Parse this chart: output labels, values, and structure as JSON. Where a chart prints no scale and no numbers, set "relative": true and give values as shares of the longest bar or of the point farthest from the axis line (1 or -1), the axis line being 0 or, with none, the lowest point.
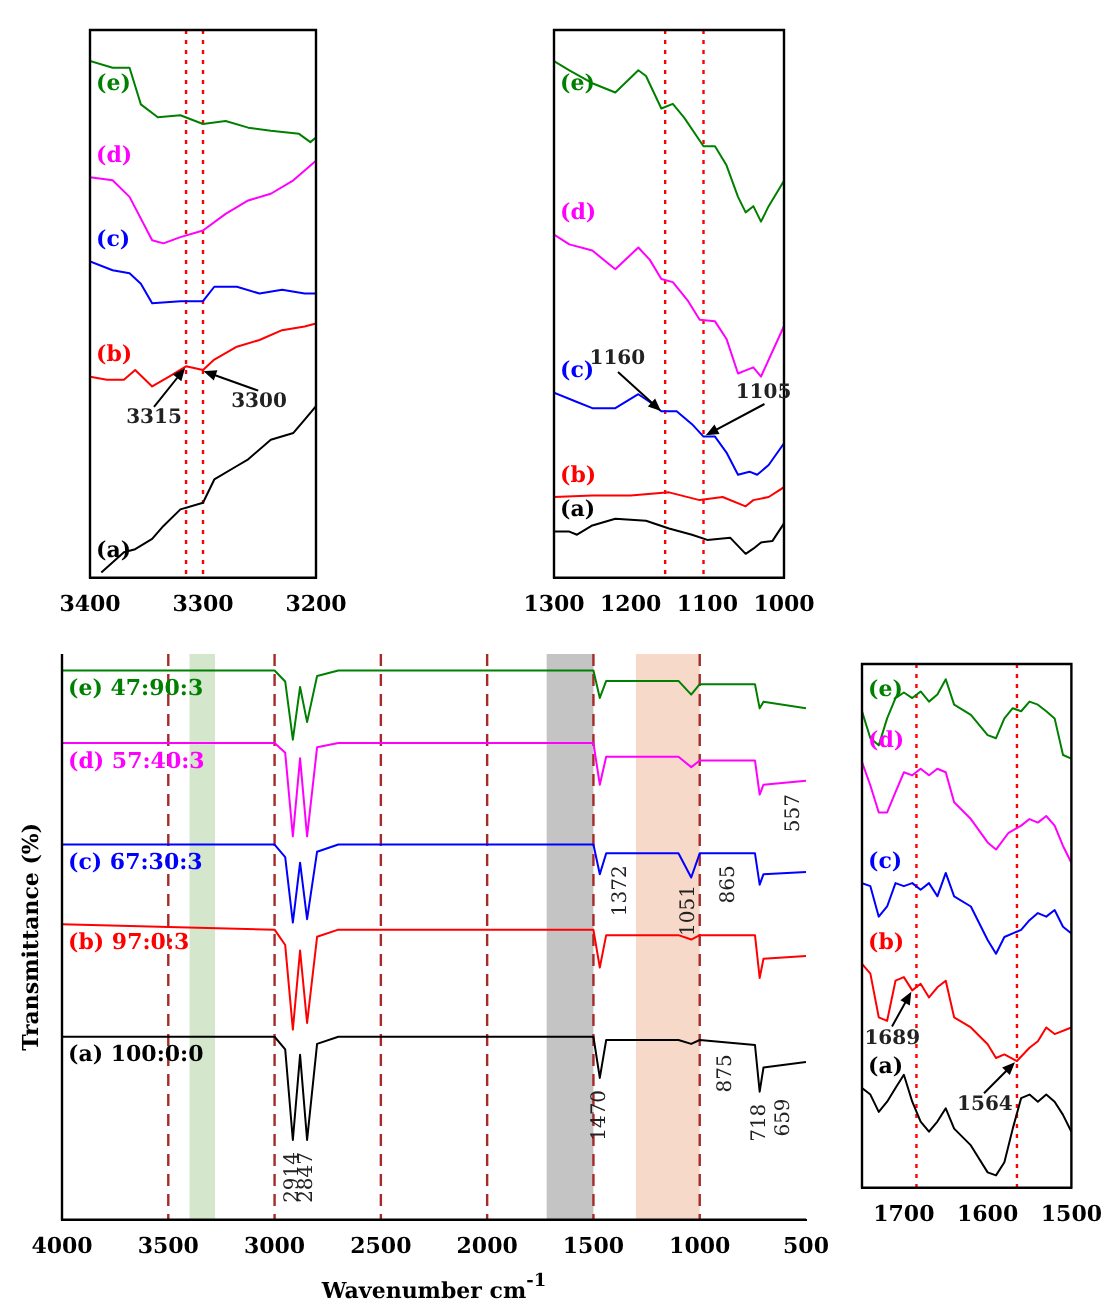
{
  "chart_data": [
    {
      "type": "line",
      "relative": true,
      "xlabel": "Wavenumber cm$^{-1}$",
      "ylabel": "Transmittance (%)",
      "xlim": [
        4000,
        500
      ],
      "xticks": [
        4000,
        3500,
        3000,
        2500,
        2000,
        1500,
        1000,
        500
      ],
      "marker": "none",
      "series": [
        {
          "name": "(a) 100:0:0",
          "color": "#000000",
          "x": [
            4000,
            3000,
            2950,
            2914,
            2880,
            2847,
            2800,
            2700,
            1500,
            1470,
            1440,
            1100,
            1040,
            1000,
            740,
            718,
            700,
            500
          ],
          "values": [
            0.333,
            0.333,
            0.31,
            0.145,
            0.3,
            0.145,
            0.32,
            0.333,
            0.333,
            0.258,
            0.327,
            0.327,
            0.32,
            0.327,
            0.318,
            0.233,
            0.277,
            0.287
          ]
        },
        {
          "name": "(b) 97:0:3",
          "color": "#ff0000",
          "x": [
            4000,
            3000,
            2950,
            2914,
            2880,
            2847,
            2800,
            2700,
            1500,
            1470,
            1440,
            1100,
            1040,
            1000,
            740,
            718,
            700,
            500
          ],
          "values": [
            0.538,
            0.528,
            0.5,
            0.346,
            0.49,
            0.358,
            0.515,
            0.528,
            0.528,
            0.459,
            0.518,
            0.518,
            0.51,
            0.518,
            0.518,
            0.44,
            0.475,
            0.48
          ]
        },
        {
          "name": "(c) 67:30:3",
          "color": "#0000ff",
          "x": [
            4000,
            3000,
            2950,
            2914,
            2880,
            2847,
            2800,
            2700,
            1500,
            1470,
            1440,
            1100,
            1040,
            1000,
            740,
            718,
            700,
            500
          ],
          "values": [
            0.683,
            0.683,
            0.66,
            0.541,
            0.65,
            0.547,
            0.67,
            0.683,
            0.683,
            0.629,
            0.667,
            0.667,
            0.623,
            0.667,
            0.667,
            0.61,
            0.629,
            0.633
          ]
        },
        {
          "name": "(d) 57:40:3",
          "color": "#ff00ff",
          "x": [
            4000,
            3000,
            2950,
            2914,
            2880,
            2847,
            2800,
            2700,
            1500,
            1470,
            1440,
            1100,
            1040,
            1000,
            740,
            718,
            700,
            500
          ],
          "values": [
            0.868,
            0.868,
            0.85,
            0.698,
            0.84,
            0.698,
            0.86,
            0.868,
            0.868,
            0.792,
            0.843,
            0.843,
            0.824,
            0.836,
            0.836,
            0.774,
            0.792,
            0.799
          ]
        },
        {
          "name": "(e) 47:90:3",
          "color": "#008000",
          "x": [
            4000,
            3000,
            2950,
            2914,
            2880,
            2847,
            2800,
            2700,
            1500,
            1470,
            1440,
            1100,
            1040,
            1000,
            740,
            718,
            700,
            500
          ],
          "values": [
            1,
            1,
            0.98,
            0.874,
            0.97,
            0.906,
            0.99,
            1,
            1,
            0.95,
            0.981,
            0.981,
            0.956,
            0.975,
            0.975,
            0.931,
            0.943,
            0.931
          ]
        }
      ],
      "ref_lines": [
        {
          "axis": "x",
          "value": 3500,
          "color": "#a52a2a",
          "line_style": "dashed"
        },
        {
          "axis": "x",
          "value": 3000,
          "color": "#a52a2a",
          "line_style": "dashed"
        },
        {
          "axis": "x",
          "value": 2500,
          "color": "#a52a2a",
          "line_style": "dashed"
        },
        {
          "axis": "x",
          "value": 2000,
          "color": "#a52a2a",
          "line_style": "dashed"
        },
        {
          "axis": "x",
          "value": 1500,
          "color": "#a52a2a",
          "line_style": "dashed"
        },
        {
          "axis": "x",
          "value": 1000,
          "color": "#a52a2a",
          "line_style": "dashed"
        }
      ],
      "bands": [
        {
          "axis": "x",
          "from": 3400,
          "to": 3280,
          "color": "#d4e6cc"
        },
        {
          "axis": "x",
          "from": 1720,
          "to": 1500,
          "color": "#c4c4c4"
        },
        {
          "axis": "x",
          "from": 1300,
          "to": 1000,
          "color": "#f7d9c9"
        }
      ],
      "annotations": [
        {
          "text": "2914",
          "x": 2914,
          "y": 0.145
        },
        {
          "text": "2847",
          "x": 2847,
          "y": 0.145
        },
        {
          "text": "1470",
          "x": 1470,
          "y": 0.258
        },
        {
          "text": "1372",
          "x": 1372,
          "y": 0.667
        },
        {
          "text": "1051",
          "x": 1051,
          "y": 0.631
        },
        {
          "text": "865",
          "x": 865,
          "y": 0.667
        },
        {
          "text": "557",
          "x": 557,
          "y": 0.797
        },
        {
          "text": "875",
          "x": 875,
          "y": 0.323
        },
        {
          "text": "718",
          "x": 718,
          "y": 0.233
        },
        {
          "text": "659",
          "x": 659,
          "y": 0.279
        }
      ]
    },
    {
      "type": "line",
      "relative": true,
      "xlim": [
        3400,
        3200
      ],
      "xticks": [
        3400,
        3300,
        3200
      ],
      "marker": "none",
      "series": [
        {
          "name": "(a)",
          "color": "#000000",
          "x": [
            3390,
            3370,
            3360,
            3345,
            3335,
            3320,
            3300,
            3290,
            3270,
            3260,
            3240,
            3220,
            3210,
            3200
          ],
          "values": [
            0.01,
            0.049,
            0.055,
            0.075,
            0.1,
            0.132,
            0.145,
            0.19,
            0.216,
            0.229,
            0.267,
            0.28,
            0.306,
            0.332
          ]
        },
        {
          "name": "(b)",
          "color": "#ff0000",
          "x": [
            3400,
            3385,
            3370,
            3360,
            3345,
            3330,
            3315,
            3300,
            3290,
            3270,
            3250,
            3230,
            3210,
            3200
          ],
          "values": [
            0.389,
            0.383,
            0.383,
            0.402,
            0.37,
            0.389,
            0.409,
            0.402,
            0.422,
            0.447,
            0.46,
            0.479,
            0.486,
            0.492
          ]
        },
        {
          "name": "(c)",
          "color": "#0000ff",
          "x": [
            3400,
            3380,
            3365,
            3355,
            3345,
            3320,
            3300,
            3290,
            3270,
            3250,
            3230,
            3210,
            3200
          ],
          "values": [
            0.612,
            0.595,
            0.589,
            0.569,
            0.531,
            0.535,
            0.535,
            0.563,
            0.563,
            0.55,
            0.557,
            0.55,
            0.55
          ]
        },
        {
          "name": "(d)",
          "color": "#ff00ff",
          "x": [
            3400,
            3380,
            3365,
            3345,
            3335,
            3320,
            3300,
            3280,
            3260,
            3240,
            3220,
            3200
          ],
          "values": [
            0.775,
            0.769,
            0.737,
            0.653,
            0.647,
            0.659,
            0.672,
            0.704,
            0.73,
            0.743,
            0.769,
            0.807
          ]
        },
        {
          "name": "(e)",
          "color": "#008000",
          "x": [
            3400,
            3380,
            3365,
            3355,
            3340,
            3320,
            3300,
            3280,
            3260,
            3240,
            3215,
            3205,
            3200
          ],
          "values": [
            1,
            0.987,
            0.987,
            0.916,
            0.891,
            0.895,
            0.878,
            0.884,
            0.871,
            0.865,
            0.859,
            0.843,
            0.852
          ]
        }
      ],
      "ref_lines": [
        {
          "axis": "x",
          "value": 3315,
          "color": "#ff0000",
          "line_style": "dotted"
        },
        {
          "axis": "x",
          "value": 3300,
          "color": "#ff0000",
          "line_style": "dotted"
        }
      ],
      "annotations": [
        {
          "text": "3315",
          "x": 3315,
          "y": 0.409
        },
        {
          "text": "3300",
          "x": 3300,
          "y": 0.402
        }
      ]
    },
    {
      "type": "line",
      "relative": true,
      "xlim": [
        1300,
        1000
      ],
      "xticks": [
        1300,
        1200,
        1100,
        1000
      ],
      "marker": "none",
      "series": [
        {
          "name": "(a)",
          "color": "#000000",
          "x": [
            1300,
            1280,
            1270,
            1250,
            1220,
            1180,
            1150,
            1120,
            1100,
            1070,
            1050,
            1040,
            1030,
            1015,
            1000
          ],
          "values": [
            0.089,
            0.089,
            0.083,
            0.101,
            0.114,
            0.11,
            0.095,
            0.083,
            0.073,
            0.077,
            0.046,
            0.056,
            0.068,
            0.071,
            0.105
          ]
        },
        {
          "name": "(b)",
          "color": "#ff0000",
          "x": [
            1300,
            1250,
            1200,
            1150,
            1110,
            1080,
            1050,
            1040,
            1020,
            1000
          ],
          "values": [
            0.156,
            0.159,
            0.159,
            0.165,
            0.15,
            0.156,
            0.138,
            0.15,
            0.156,
            0.175
          ]
        },
        {
          "name": "(c)",
          "color": "#0000ff",
          "x": [
            1300,
            1270,
            1250,
            1220,
            1190,
            1175,
            1160,
            1140,
            1120,
            1105,
            1090,
            1075,
            1060,
            1045,
            1035,
            1020,
            1000
          ],
          "values": [
            0.358,
            0.34,
            0.328,
            0.328,
            0.355,
            0.34,
            0.322,
            0.322,
            0.297,
            0.273,
            0.273,
            0.242,
            0.199,
            0.205,
            0.199,
            0.218,
            0.26
          ]
        },
        {
          "name": "(d)",
          "color": "#ff00ff",
          "x": [
            1300,
            1280,
            1250,
            1220,
            1190,
            1175,
            1160,
            1145,
            1125,
            1110,
            1090,
            1075,
            1060,
            1050,
            1040,
            1030,
            1000
          ],
          "values": [
            0.664,
            0.645,
            0.633,
            0.597,
            0.639,
            0.615,
            0.578,
            0.572,
            0.535,
            0.499,
            0.496,
            0.462,
            0.395,
            0.401,
            0.407,
            0.389,
            0.487
          ]
        },
        {
          "name": "(e)",
          "color": "#008000",
          "x": [
            1300,
            1280,
            1250,
            1220,
            1190,
            1180,
            1160,
            1145,
            1130,
            1105,
            1090,
            1075,
            1060,
            1050,
            1040,
            1030,
            1020,
            1000
          ],
          "values": [
            1,
            0.982,
            0.957,
            0.939,
            0.982,
            0.971,
            0.908,
            0.917,
            0.89,
            0.835,
            0.835,
            0.798,
            0.737,
            0.707,
            0.719,
            0.689,
            0.719,
            0.768
          ]
        }
      ],
      "ref_lines": [
        {
          "axis": "x",
          "value": 1155,
          "color": "#ff0000",
          "line_style": "dotted"
        },
        {
          "axis": "x",
          "value": 1105,
          "color": "#ff0000",
          "line_style": "dotted"
        }
      ],
      "annotations": [
        {
          "text": "1160",
          "x": 1160,
          "y": 0.322
        },
        {
          "text": "1105",
          "x": 1105,
          "y": 0.273
        }
      ]
    },
    {
      "type": "line",
      "relative": true,
      "xlim": [
        1750,
        1500
      ],
      "xticks": [
        1700,
        1600,
        1500
      ],
      "marker": "none",
      "series": [
        {
          "name": "(a)",
          "color": "#000000",
          "x": [
            1750,
            1740,
            1730,
            1720,
            1710,
            1700,
            1690,
            1680,
            1670,
            1660,
            1650,
            1640,
            1620,
            1600,
            1590,
            1580,
            1570,
            1560,
            1550,
            1540,
            1530,
            1520,
            1510,
            1500
          ],
          "values": [
            0.196,
            0.183,
            0.149,
            0.169,
            0.196,
            0.222,
            0.169,
            0.13,
            0.11,
            0.13,
            0.156,
            0.116,
            0.083,
            0.03,
            0.024,
            0.05,
            0.116,
            0.176,
            0.183,
            0.169,
            0.183,
            0.169,
            0.143,
            0.11
          ]
        },
        {
          "name": "(b)",
          "color": "#ff0000",
          "x": [
            1750,
            1740,
            1730,
            1720,
            1710,
            1700,
            1690,
            1680,
            1670,
            1660,
            1650,
            1640,
            1620,
            1600,
            1590,
            1580,
            1565,
            1550,
            1540,
            1530,
            1520,
            1500
          ],
          "values": [
            0.44,
            0.421,
            0.335,
            0.328,
            0.407,
            0.414,
            0.388,
            0.401,
            0.374,
            0.394,
            0.407,
            0.335,
            0.315,
            0.282,
            0.255,
            0.262,
            0.249,
            0.275,
            0.288,
            0.315,
            0.302,
            0.315
          ]
        },
        {
          "name": "(c)",
          "color": "#0000ff",
          "x": [
            1750,
            1740,
            1730,
            1720,
            1710,
            1700,
            1690,
            1680,
            1670,
            1660,
            1650,
            1640,
            1620,
            1600,
            1590,
            1580,
            1570,
            1560,
            1550,
            1540,
            1530,
            1520,
            1510,
            1500
          ],
          "values": [
            0.599,
            0.593,
            0.533,
            0.553,
            0.599,
            0.593,
            0.599,
            0.586,
            0.599,
            0.573,
            0.619,
            0.573,
            0.553,
            0.487,
            0.46,
            0.493,
            0.5,
            0.507,
            0.526,
            0.54,
            0.533,
            0.546,
            0.513,
            0.5
          ]
        },
        {
          "name": "(d)",
          "color": "#ff00ff",
          "x": [
            1750,
            1740,
            1730,
            1720,
            1710,
            1700,
            1690,
            1680,
            1670,
            1660,
            1650,
            1640,
            1620,
            1600,
            1590,
            1575,
            1560,
            1550,
            1540,
            1530,
            1520,
            1510,
            1500
          ],
          "values": [
            0.837,
            0.791,
            0.738,
            0.738,
            0.778,
            0.817,
            0.811,
            0.824,
            0.811,
            0.824,
            0.817,
            0.758,
            0.725,
            0.679,
            0.665,
            0.698,
            0.712,
            0.725,
            0.718,
            0.731,
            0.712,
            0.672,
            0.639
          ]
        },
        {
          "name": "(e)",
          "color": "#008000",
          "x": [
            1750,
            1740,
            1730,
            1720,
            1710,
            1700,
            1690,
            1680,
            1670,
            1660,
            1650,
            1640,
            1620,
            1600,
            1590,
            1580,
            1570,
            1560,
            1550,
            1540,
            1530,
            1520,
            1510,
            1500
          ],
          "values": [
            0.937,
            0.884,
            0.87,
            0.923,
            0.963,
            0.974,
            0.963,
            0.976,
            0.956,
            0.97,
            1,
            0.95,
            0.93,
            0.89,
            0.884,
            0.923,
            0.943,
            0.937,
            0.956,
            0.95,
            0.937,
            0.923,
            0.851,
            0.844
          ]
        }
      ],
      "ref_lines": [
        {
          "axis": "x",
          "value": 1685,
          "color": "#ff0000",
          "line_style": "dotted"
        },
        {
          "axis": "x",
          "value": 1565,
          "color": "#ff0000",
          "line_style": "dotted"
        }
      ],
      "annotations": [
        {
          "text": "1689",
          "x": 1690,
          "y": 0.388
        },
        {
          "text": "1564",
          "x": 1565,
          "y": 0.249
        }
      ]
    }
  ]
}
